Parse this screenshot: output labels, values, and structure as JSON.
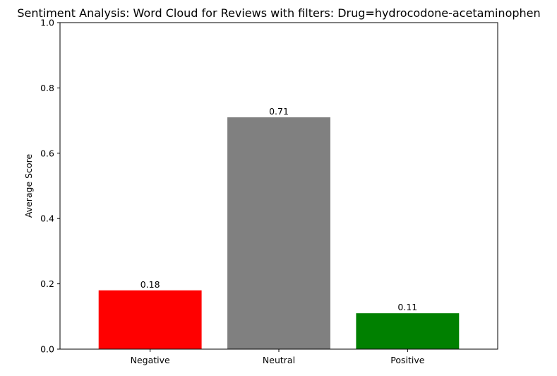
{
  "chart_data": {
    "type": "bar",
    "title": "Sentiment Analysis: Word Cloud for Reviews with filters: Drug=hydrocodone-acetaminophen",
    "xlabel": "",
    "ylabel": "Average Score",
    "categories": [
      "Negative",
      "Neutral",
      "Positive"
    ],
    "values": [
      0.18,
      0.71,
      0.11
    ],
    "value_labels": [
      "0.18",
      "0.71",
      "0.11"
    ],
    "colors": [
      "#ff0000",
      "#808080",
      "#008000"
    ],
    "ylim": [
      0,
      1.0
    ],
    "yticks": [
      0.0,
      0.2,
      0.4,
      0.6,
      0.8,
      1.0
    ],
    "ytick_labels": [
      "0.0",
      "0.2",
      "0.4",
      "0.6",
      "0.8",
      "1.0"
    ],
    "grid": false,
    "legend": "none"
  }
}
